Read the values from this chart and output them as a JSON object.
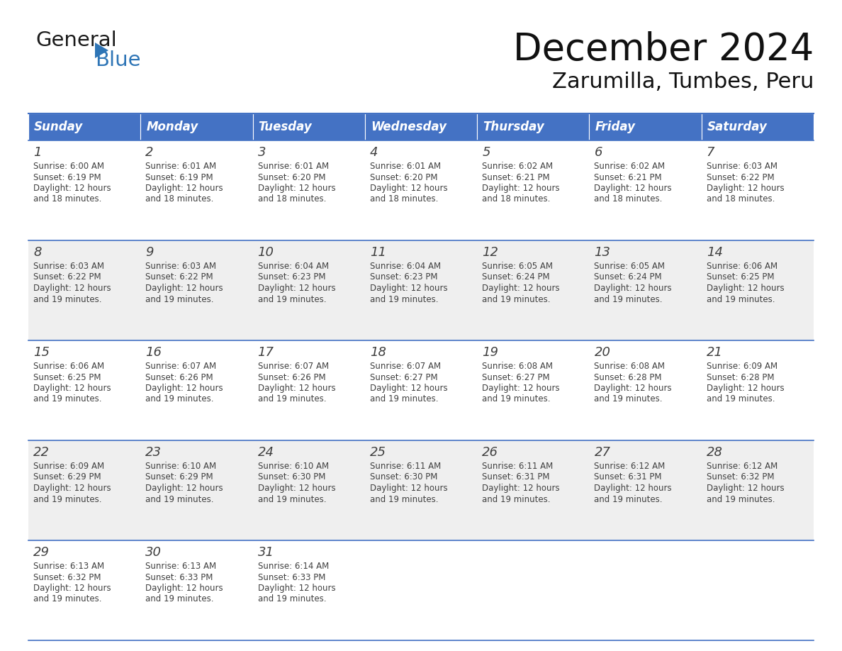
{
  "title": "December 2024",
  "subtitle": "Zarumilla, Tumbes, Peru",
  "header_color": "#4472C4",
  "header_text_color": "#FFFFFF",
  "cell_bg_color": "#FFFFFF",
  "alt_cell_bg_color": "#EFEFEF",
  "border_color": "#4472C4",
  "text_color": "#404040",
  "days_of_week": [
    "Sunday",
    "Monday",
    "Tuesday",
    "Wednesday",
    "Thursday",
    "Friday",
    "Saturday"
  ],
  "weeks": [
    [
      {
        "day": 1,
        "sunrise": "6:00 AM",
        "sunset": "6:19 PM",
        "daylight_hours": 12,
        "daylight_minutes": 18
      },
      {
        "day": 2,
        "sunrise": "6:01 AM",
        "sunset": "6:19 PM",
        "daylight_hours": 12,
        "daylight_minutes": 18
      },
      {
        "day": 3,
        "sunrise": "6:01 AM",
        "sunset": "6:20 PM",
        "daylight_hours": 12,
        "daylight_minutes": 18
      },
      {
        "day": 4,
        "sunrise": "6:01 AM",
        "sunset": "6:20 PM",
        "daylight_hours": 12,
        "daylight_minutes": 18
      },
      {
        "day": 5,
        "sunrise": "6:02 AM",
        "sunset": "6:21 PM",
        "daylight_hours": 12,
        "daylight_minutes": 18
      },
      {
        "day": 6,
        "sunrise": "6:02 AM",
        "sunset": "6:21 PM",
        "daylight_hours": 12,
        "daylight_minutes": 18
      },
      {
        "day": 7,
        "sunrise": "6:03 AM",
        "sunset": "6:22 PM",
        "daylight_hours": 12,
        "daylight_minutes": 18
      }
    ],
    [
      {
        "day": 8,
        "sunrise": "6:03 AM",
        "sunset": "6:22 PM",
        "daylight_hours": 12,
        "daylight_minutes": 19
      },
      {
        "day": 9,
        "sunrise": "6:03 AM",
        "sunset": "6:22 PM",
        "daylight_hours": 12,
        "daylight_minutes": 19
      },
      {
        "day": 10,
        "sunrise": "6:04 AM",
        "sunset": "6:23 PM",
        "daylight_hours": 12,
        "daylight_minutes": 19
      },
      {
        "day": 11,
        "sunrise": "6:04 AM",
        "sunset": "6:23 PM",
        "daylight_hours": 12,
        "daylight_minutes": 19
      },
      {
        "day": 12,
        "sunrise": "6:05 AM",
        "sunset": "6:24 PM",
        "daylight_hours": 12,
        "daylight_minutes": 19
      },
      {
        "day": 13,
        "sunrise": "6:05 AM",
        "sunset": "6:24 PM",
        "daylight_hours": 12,
        "daylight_minutes": 19
      },
      {
        "day": 14,
        "sunrise": "6:06 AM",
        "sunset": "6:25 PM",
        "daylight_hours": 12,
        "daylight_minutes": 19
      }
    ],
    [
      {
        "day": 15,
        "sunrise": "6:06 AM",
        "sunset": "6:25 PM",
        "daylight_hours": 12,
        "daylight_minutes": 19
      },
      {
        "day": 16,
        "sunrise": "6:07 AM",
        "sunset": "6:26 PM",
        "daylight_hours": 12,
        "daylight_minutes": 19
      },
      {
        "day": 17,
        "sunrise": "6:07 AM",
        "sunset": "6:26 PM",
        "daylight_hours": 12,
        "daylight_minutes": 19
      },
      {
        "day": 18,
        "sunrise": "6:07 AM",
        "sunset": "6:27 PM",
        "daylight_hours": 12,
        "daylight_minutes": 19
      },
      {
        "day": 19,
        "sunrise": "6:08 AM",
        "sunset": "6:27 PM",
        "daylight_hours": 12,
        "daylight_minutes": 19
      },
      {
        "day": 20,
        "sunrise": "6:08 AM",
        "sunset": "6:28 PM",
        "daylight_hours": 12,
        "daylight_minutes": 19
      },
      {
        "day": 21,
        "sunrise": "6:09 AM",
        "sunset": "6:28 PM",
        "daylight_hours": 12,
        "daylight_minutes": 19
      }
    ],
    [
      {
        "day": 22,
        "sunrise": "6:09 AM",
        "sunset": "6:29 PM",
        "daylight_hours": 12,
        "daylight_minutes": 19
      },
      {
        "day": 23,
        "sunrise": "6:10 AM",
        "sunset": "6:29 PM",
        "daylight_hours": 12,
        "daylight_minutes": 19
      },
      {
        "day": 24,
        "sunrise": "6:10 AM",
        "sunset": "6:30 PM",
        "daylight_hours": 12,
        "daylight_minutes": 19
      },
      {
        "day": 25,
        "sunrise": "6:11 AM",
        "sunset": "6:30 PM",
        "daylight_hours": 12,
        "daylight_minutes": 19
      },
      {
        "day": 26,
        "sunrise": "6:11 AM",
        "sunset": "6:31 PM",
        "daylight_hours": 12,
        "daylight_minutes": 19
      },
      {
        "day": 27,
        "sunrise": "6:12 AM",
        "sunset": "6:31 PM",
        "daylight_hours": 12,
        "daylight_minutes": 19
      },
      {
        "day": 28,
        "sunrise": "6:12 AM",
        "sunset": "6:32 PM",
        "daylight_hours": 12,
        "daylight_minutes": 19
      }
    ],
    [
      {
        "day": 29,
        "sunrise": "6:13 AM",
        "sunset": "6:32 PM",
        "daylight_hours": 12,
        "daylight_minutes": 19
      },
      {
        "day": 30,
        "sunrise": "6:13 AM",
        "sunset": "6:33 PM",
        "daylight_hours": 12,
        "daylight_minutes": 19
      },
      {
        "day": 31,
        "sunrise": "6:14 AM",
        "sunset": "6:33 PM",
        "daylight_hours": 12,
        "daylight_minutes": 19
      },
      null,
      null,
      null,
      null
    ]
  ],
  "logo_color_general": "#1a1a1a",
  "logo_color_blue": "#2E75B6",
  "logo_triangle_color": "#2E75B6",
  "title_fontsize": 38,
  "subtitle_fontsize": 22,
  "header_fontsize": 12,
  "day_num_fontsize": 13,
  "cell_text_fontsize": 8.5
}
